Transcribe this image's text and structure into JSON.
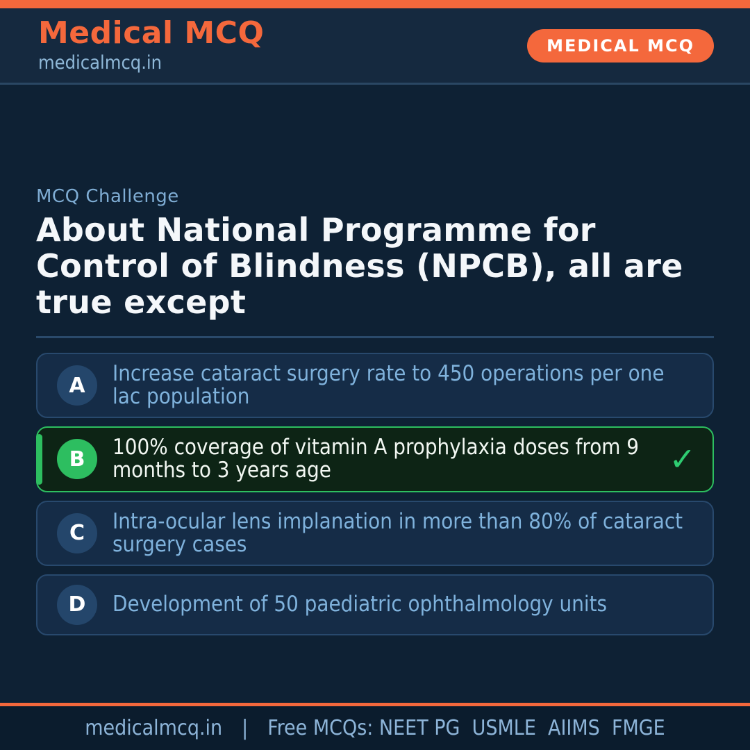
{
  "header": {
    "brand_title": "Medical MCQ",
    "brand_subtitle": "medicalmcq.in",
    "badge_label": "MEDICAL MCQ"
  },
  "question": {
    "kicker": "MCQ Challenge",
    "text": "About National Programme for Control of Blindness (NPCB), all are true except"
  },
  "options": [
    {
      "letter": "A",
      "text": "Increase cataract surgery rate to 450 operations per one lac population",
      "is_correct": false
    },
    {
      "letter": "B",
      "text": "100% coverage of vitamin A prophylaxia doses from 9 months to 3 years age",
      "is_correct": true
    },
    {
      "letter": "C",
      "text": "Intra-ocular lens implanation in more than 80% of cataract surgery cases",
      "is_correct": false
    },
    {
      "letter": "D",
      "text": "Development of 50 paediatric ophthalmology units",
      "is_correct": false
    }
  ],
  "icons": {
    "correct_check": "✓"
  },
  "footer": {
    "site": "medicalmcq.in",
    "separator": "|",
    "tagline": "Free MCQs: NEET PG  USMLE  AIIMS  FMGE"
  },
  "colors": {
    "accent_orange": "#f4683c",
    "page_bg": "#0e2134",
    "header_bg": "#15293f",
    "footer_bg": "#0b1c2d",
    "card_bg": "#152c47",
    "card_border": "#28496d",
    "option_text": "#7fb2dc",
    "correct_green": "#2dbe60",
    "correct_bg": "#0d2415",
    "check_green": "#2ecc71",
    "muted_blue": "#8fb8d8",
    "divider": "#2a4a6b",
    "question_white": "#f4f7fa"
  }
}
